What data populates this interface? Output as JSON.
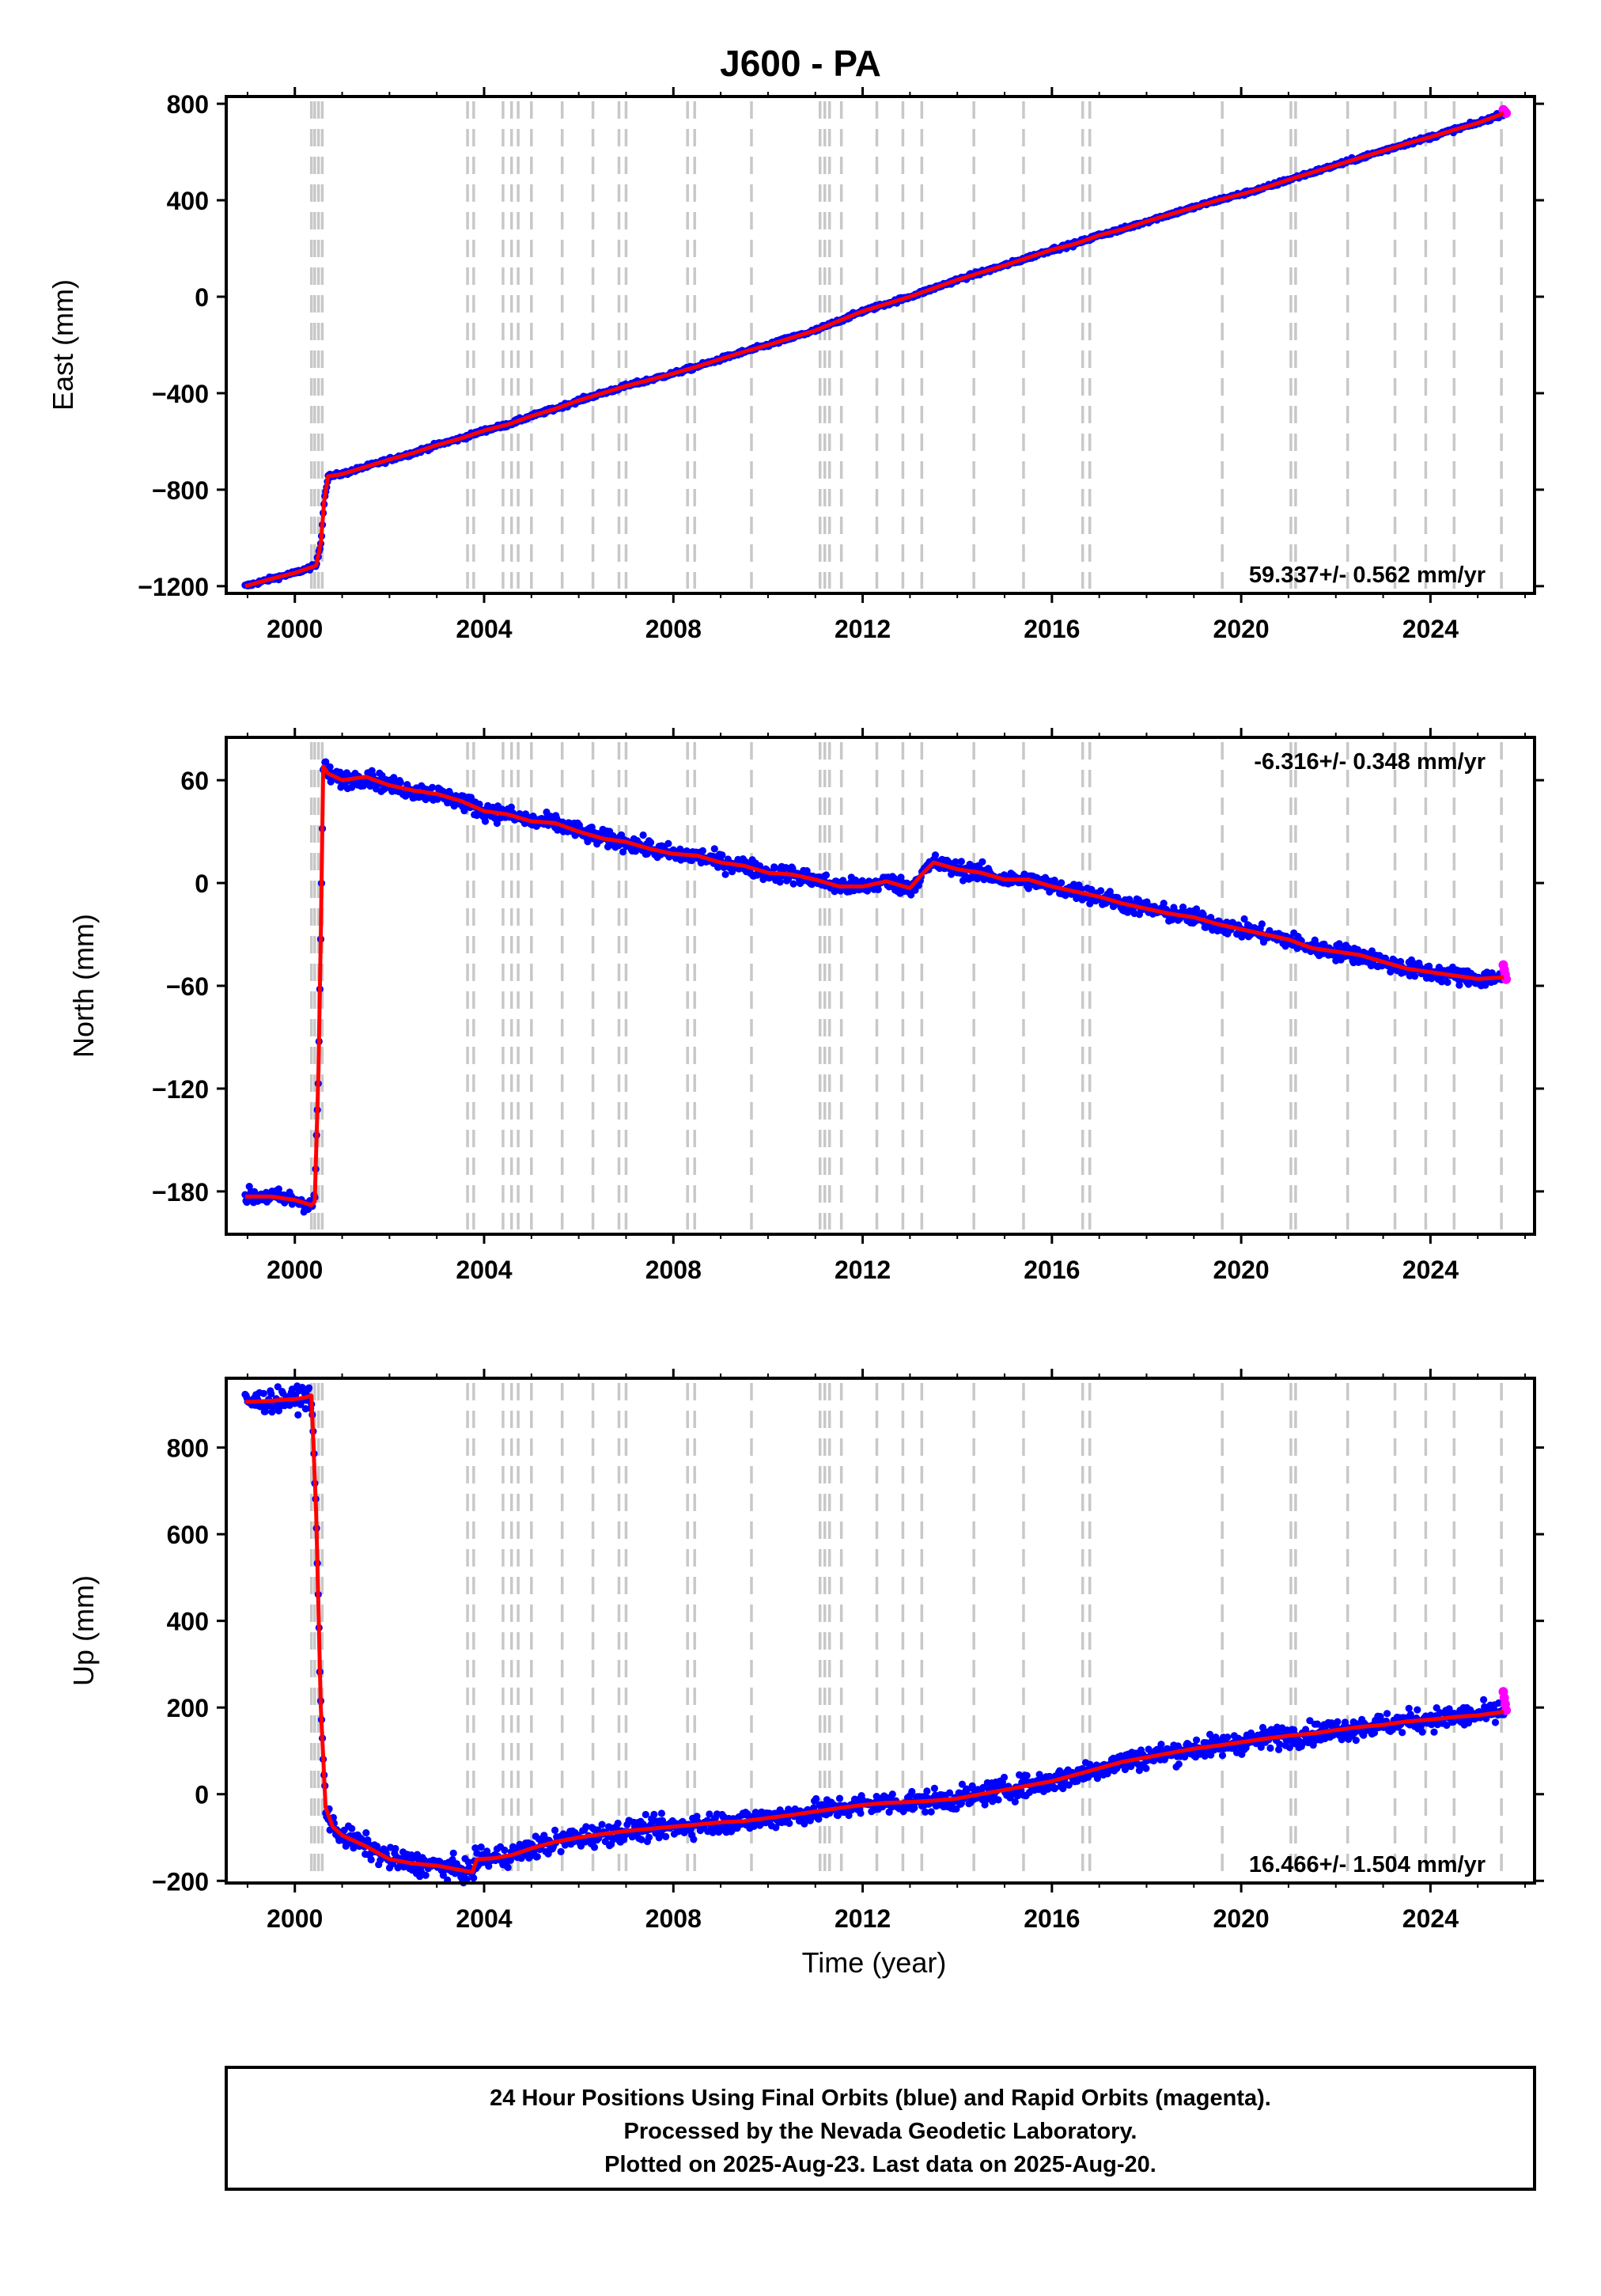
{
  "colors": {
    "final_orbits": "#0000ff",
    "rapid_orbits": "#ff00ff",
    "fit": "#ff0000",
    "event_line": "#c8c8c8",
    "frame": "#000000"
  },
  "chart_data": {
    "type": "scatter",
    "title": "J600 - PA",
    "xlabel": "Time (year)",
    "xlim": [
      1998.55,
      2026.2
    ],
    "x_ticks": [
      2000,
      2004,
      2008,
      2012,
      2016,
      2020,
      2024
    ],
    "x_tick_labels": [
      "2000",
      "2004",
      "2008",
      "2012",
      "2016",
      "2020",
      "2024"
    ],
    "event_lines": [
      2000.35,
      2000.42,
      2000.5,
      2000.58,
      2003.65,
      2003.78,
      2004.4,
      2004.58,
      2004.72,
      2005.0,
      2005.65,
      2006.3,
      2006.85,
      2007.0,
      2008.3,
      2008.45,
      2009.65,
      2011.1,
      2011.2,
      2011.3,
      2011.55,
      2012.3,
      2012.85,
      2013.25,
      2014.35,
      2015.4,
      2016.65,
      2016.8,
      2019.6,
      2021.05,
      2021.15,
      2022.25,
      2023.25,
      2023.9,
      2024.5,
      2025.5
    ],
    "panels": [
      {
        "component": "east",
        "ylabel": "East (mm)",
        "ylim": [
          -1230,
          830
        ],
        "y_ticks": [
          -1200,
          -800,
          -400,
          0,
          400,
          800
        ],
        "y_tick_labels": [
          "−1200",
          "−800",
          "−400",
          "0",
          "400",
          "800"
        ],
        "rate_label": "59.337+/- 0.562 mm/yr",
        "rate_position": "bottom-right",
        "series": [
          {
            "x": [
              1998.95,
              1999.5,
              2000.0,
              2000.3,
              2000.45,
              2000.55,
              2000.62,
              2000.7,
              2001.0,
              2001.5,
              2002.0,
              2002.5,
              2003.0,
              2003.5,
              2004.0,
              2004.5,
              2005.0,
              2005.5,
              2006.0,
              2006.5,
              2007.0,
              2007.5,
              2008.0,
              2008.5,
              2009.0,
              2009.5,
              2010.0,
              2010.5,
              2011.0,
              2011.5,
              2012.0,
              2012.5,
              2013.0,
              2013.5,
              2014.0,
              2014.5,
              2015.0,
              2015.5,
              2016.0,
              2016.5,
              2017.0,
              2017.5,
              2018.0,
              2018.5,
              2019.0,
              2019.5,
              2020.0,
              2020.5,
              2021.0,
              2021.5,
              2022.0,
              2022.5,
              2023.0,
              2023.5,
              2024.0,
              2024.5,
              2025.0,
              2025.55
            ],
            "y": [
              -1200,
              -1170,
              -1145,
              -1125,
              -1115,
              -1020,
              -850,
              -745,
              -735,
              -705,
              -675,
              -648,
              -615,
              -588,
              -555,
              -530,
              -495,
              -465,
              -430,
              -400,
              -370,
              -345,
              -318,
              -290,
              -258,
              -228,
              -200,
              -170,
              -140,
              -100,
              -60,
              -30,
              0,
              35,
              70,
              100,
              130,
              162,
              195,
              220,
              255,
              280,
              312,
              342,
              370,
              400,
              425,
              452,
              485,
              515,
              545,
              575,
              605,
              635,
              662,
              692,
              720,
              760
            ]
          }
        ],
        "rapid_point": {
          "x": 2025.6,
          "y": 768
        },
        "noise": 6
      },
      {
        "component": "north",
        "ylabel": "North (mm)",
        "ylim": [
          -205,
          85
        ],
        "y_ticks": [
          -180,
          -120,
          -60,
          0,
          60
        ],
        "y_tick_labels": [
          "−180",
          "−120",
          "−60",
          "0",
          "60"
        ],
        "rate_label": "-6.316+/- 0.348 mm/yr",
        "rate_position": "top-right",
        "series": [
          {
            "x": [
              1998.95,
              1999.5,
              2000.0,
              2000.35,
              2000.42,
              2000.5,
              2000.55,
              2000.6,
              2000.7,
              2001.0,
              2001.5,
              2002.0,
              2002.5,
              2003.0,
              2003.5,
              2004.0,
              2004.5,
              2005.0,
              2005.5,
              2006.0,
              2006.5,
              2007.0,
              2007.5,
              2008.0,
              2008.5,
              2009.0,
              2009.5,
              2010.0,
              2010.5,
              2011.0,
              2011.5,
              2012.0,
              2012.5,
              2013.0,
              2013.25,
              2013.5,
              2014.0,
              2014.5,
              2015.0,
              2015.5,
              2016.0,
              2016.5,
              2017.0,
              2017.5,
              2018.0,
              2018.5,
              2019.0,
              2019.5,
              2020.0,
              2020.5,
              2021.0,
              2021.5,
              2022.0,
              2022.5,
              2023.0,
              2023.5,
              2024.0,
              2024.5,
              2025.0,
              2025.55
            ],
            "y": [
              -183,
              -183,
              -185,
              -188,
              -186,
              -110,
              -30,
              68,
              64,
              60,
              62,
              57,
              54,
              52,
              48,
              42,
              40,
              36,
              35,
              30,
              26,
              24,
              20,
              17,
              16,
              12,
              10,
              6,
              5,
              2,
              -2,
              -2,
              1,
              -3,
              5,
              12,
              8,
              6,
              2,
              2,
              -2,
              -5,
              -8,
              -12,
              -15,
              -18,
              -20,
              -24,
              -27,
              -30,
              -33,
              -38,
              -40,
              -42,
              -46,
              -50,
              -52,
              -54,
              -56,
              -55
            ]
          }
        ],
        "rapid_point": {
          "x": 2025.6,
          "y": -52
        },
        "noise": 3.5
      },
      {
        "component": "up",
        "ylabel": "Up (mm)",
        "ylim": [
          -205,
          960
        ],
        "y_ticks": [
          -200,
          0,
          200,
          400,
          600,
          800
        ],
        "y_tick_labels": [
          "−200",
          "0",
          "200",
          "400",
          "600",
          "800"
        ],
        "rate_label": "16.466+/- 1.504 mm/yr",
        "rate_position": "bottom-right",
        "series": [
          {
            "x": [
              1998.95,
              1999.5,
              2000.0,
              2000.2,
              2000.35,
              2000.45,
              2000.55,
              2000.65,
              2000.8,
              2001.0,
              2001.5,
              2002.0,
              2002.5,
              2003.0,
              2003.5,
              2003.75,
              2003.85,
              2004.2,
              2004.6,
              2005.0,
              2005.5,
              2006.0,
              2006.5,
              2007.0,
              2007.5,
              2008.0,
              2008.5,
              2009.0,
              2009.5,
              2010.0,
              2010.5,
              2011.0,
              2011.5,
              2012.0,
              2012.5,
              2013.0,
              2013.5,
              2014.0,
              2014.5,
              2015.0,
              2015.5,
              2016.0,
              2016.5,
              2017.0,
              2017.5,
              2018.0,
              2018.5,
              2019.0,
              2019.5,
              2020.0,
              2020.5,
              2021.0,
              2021.5,
              2022.0,
              2022.5,
              2023.0,
              2023.5,
              2024.0,
              2024.5,
              2025.0,
              2025.55
            ],
            "y": [
              905,
              908,
              912,
              915,
              920,
              650,
              200,
              -30,
              -75,
              -95,
              -120,
              -150,
              -160,
              -165,
              -175,
              -180,
              -150,
              -148,
              -140,
              -125,
              -110,
              -100,
              -92,
              -85,
              -80,
              -75,
              -70,
              -65,
              -62,
              -55,
              -48,
              -40,
              -32,
              -25,
              -20,
              -18,
              -15,
              -10,
              0,
              10,
              20,
              30,
              45,
              60,
              75,
              85,
              95,
              105,
              112,
              120,
              128,
              135,
              140,
              148,
              155,
              160,
              168,
              172,
              178,
              182,
              190
            ]
          }
        ],
        "rapid_point": {
          "x": 2025.6,
          "y": 215
        },
        "noise": 18
      }
    ]
  },
  "footer": {
    "line1": "24 Hour Positions Using Final Orbits (blue) and Rapid Orbits (magenta).",
    "line2": "Processed by the Nevada Geodetic Laboratory.",
    "line3": "Plotted on 2025-Aug-23. Last data on 2025-Aug-20."
  }
}
